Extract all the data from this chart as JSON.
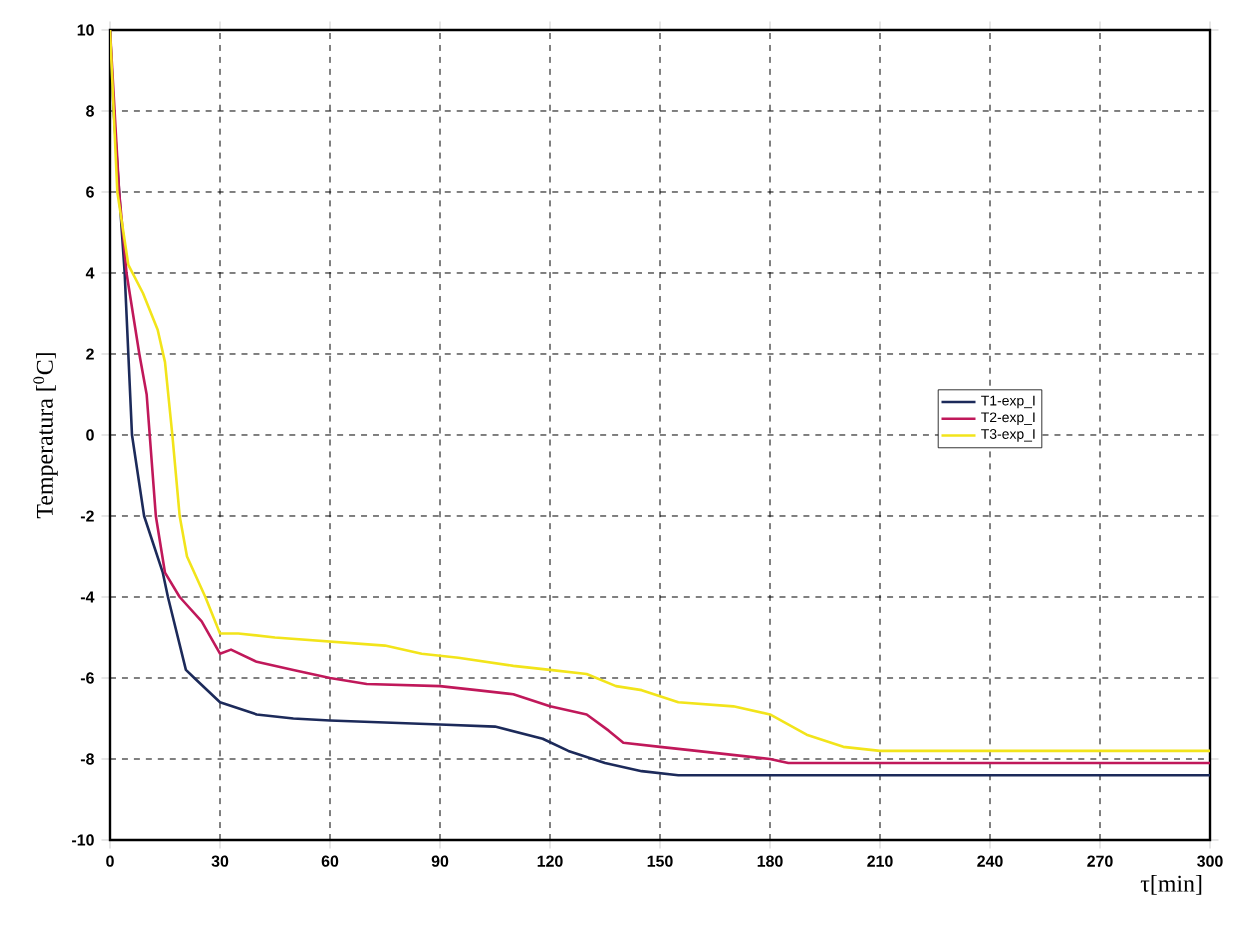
{
  "chart_data": {
    "type": "line",
    "xlabel": "τ[min]",
    "ylabel": "Temperatura [$^{0}$C]",
    "xlim": [
      0,
      300
    ],
    "ylim": [
      -10,
      10
    ],
    "xticks": [
      0,
      30,
      60,
      90,
      120,
      150,
      180,
      210,
      240,
      270,
      300
    ],
    "yticks": [
      -10,
      -8,
      -6,
      -4,
      -2,
      0,
      2,
      4,
      6,
      8,
      10
    ],
    "grid": true,
    "legend": "right",
    "line_style": "solid",
    "marker": "none",
    "series": [
      {
        "name": "T1-exp_I",
        "color": "#1c2a5a",
        "x": [
          0,
          1,
          2.5,
          4,
          6,
          9.3,
          14.4,
          15.8,
          20.7,
          23,
          30,
          40,
          50,
          60,
          75,
          90,
          105,
          118,
          125,
          135,
          145,
          155,
          200,
          250,
          300
        ],
        "values": [
          10,
          8,
          6,
          4,
          0,
          -2,
          -3.4,
          -4,
          -5.8,
          -6,
          -6.6,
          -6.9,
          -7,
          -7.05,
          -7.1,
          -7.15,
          -7.2,
          -7.5,
          -7.8,
          -8.1,
          -8.3,
          -8.4,
          -8.4,
          -8.4,
          -8.4
        ]
      },
      {
        "name": "T2-exp_I",
        "color": "#c0185a",
        "x": [
          0,
          2.5,
          4.5,
          8,
          10,
          12.5,
          15,
          19,
          25,
          30,
          33,
          40,
          50,
          60,
          70,
          90,
          100,
          110,
          120,
          130,
          136,
          140,
          150,
          160,
          180,
          185,
          240,
          300
        ],
        "values": [
          10,
          6,
          4,
          2,
          1,
          -2,
          -3.4,
          -4,
          -4.6,
          -5.4,
          -5.3,
          -5.6,
          -5.8,
          -6,
          -6.15,
          -6.2,
          -6.3,
          -6.4,
          -6.7,
          -6.9,
          -7.3,
          -7.6,
          -7.7,
          -7.8,
          -8,
          -8.1,
          -8.1,
          -8.1
        ]
      },
      {
        "name": "T3-exp_I",
        "color": "#f2e41a",
        "x": [
          0,
          2,
          5,
          9,
          13,
          15,
          17,
          19,
          21,
          26,
          30,
          35,
          45,
          60,
          75,
          85,
          95,
          110,
          120,
          130,
          138,
          145,
          155,
          170,
          180,
          190,
          200,
          210,
          250,
          300
        ],
        "values": [
          10,
          6,
          4.2,
          3.5,
          2.6,
          1.8,
          0,
          -2,
          -3,
          -4,
          -4.9,
          -4.9,
          -5,
          -5.1,
          -5.2,
          -5.4,
          -5.5,
          -5.7,
          -5.8,
          -5.9,
          -6.2,
          -6.3,
          -6.6,
          -6.7,
          -6.9,
          -7.4,
          -7.7,
          -7.8,
          -7.8,
          -7.8
        ]
      }
    ]
  }
}
